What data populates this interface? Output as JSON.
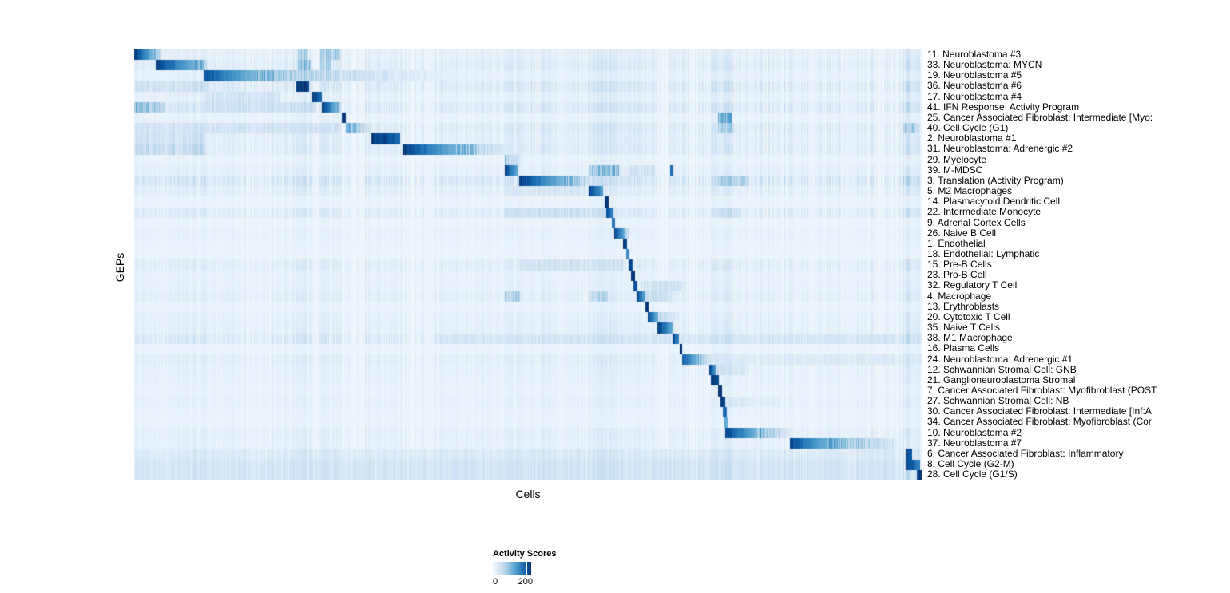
{
  "figure": {
    "background": "#ffffff"
  },
  "chart_data": {
    "type": "heatmap",
    "title": "",
    "xlabel": "Cells",
    "ylabel": "GEPs",
    "x_axis": {
      "tick_labels_shown": false
    },
    "grid": false,
    "legend": {
      "title": "Activity Scores",
      "min_label": "0",
      "tick_label": "200",
      "tick_fraction": 0.85,
      "position": "bottom-left"
    },
    "colormap": {
      "name": "Blues",
      "positions": [
        0,
        0.13,
        0.26,
        0.39,
        0.52,
        0.65,
        0.78,
        0.9,
        1.0
      ],
      "stops": [
        "#f7fbff",
        "#deebf7",
        "#c6dbef",
        "#9ecae1",
        "#6baed6",
        "#4292c6",
        "#2171b5",
        "#08519c",
        "#08306b"
      ]
    },
    "n_rows": 41,
    "rows": [
      {
        "label": "11. Neuroblastoma #3",
        "noise": 0.18,
        "blocks": [
          [
            0.0,
            0.034,
            1.0,
            0.25
          ],
          [
            0.207,
            0.22,
            0.3,
            0.3
          ],
          [
            0.236,
            0.262,
            0.32,
            0.32
          ]
        ]
      },
      {
        "label": "33. Neuroblastoma: MYCN",
        "noise": 0.25,
        "blocks": [
          [
            0.027,
            0.092,
            1.0,
            0.35
          ],
          [
            0.207,
            0.223,
            0.38,
            0.38
          ],
          [
            0.236,
            0.25,
            0.3,
            0.3
          ]
        ]
      },
      {
        "label": "19. Neuroblastoma #5",
        "noise": 0.15,
        "blocks": [
          [
            0.088,
            0.14,
            0.92,
            0.55
          ],
          [
            0.14,
            0.205,
            0.55,
            0.3
          ],
          [
            0.205,
            0.44,
            0.3,
            0.03
          ]
        ]
      },
      {
        "label": "36. Neuroblastoma #6",
        "noise": 0.3,
        "blocks": [
          [
            0.205,
            0.221,
            1.0,
            0.95
          ],
          [
            0.0,
            0.095,
            0.2,
            0.2
          ]
        ]
      },
      {
        "label": "17. Neuroblastoma #4",
        "noise": 0.15,
        "blocks": [
          [
            0.225,
            0.238,
            1.0,
            0.8
          ],
          [
            0.09,
            0.185,
            0.18,
            0.18
          ]
        ]
      },
      {
        "label": "41. IFN Response: Activity Program",
        "noise": 0.3,
        "blocks": [
          [
            0.238,
            0.263,
            1.0,
            0.3
          ],
          [
            0.0,
            0.04,
            0.45,
            0.3
          ],
          [
            0.09,
            0.23,
            0.2,
            0.2
          ]
        ]
      },
      {
        "label": "25. Cancer Associated Fibroblast: Intermediate [Myo:",
        "noise": 0.12,
        "blocks": [
          [
            0.263,
            0.268,
            1.0,
            1.0
          ],
          [
            0.74,
            0.757,
            0.45,
            0.45
          ]
        ]
      },
      {
        "label": "40. Cell Cycle (G1)",
        "noise": 0.28,
        "blocks": [
          [
            0.268,
            0.3,
            0.55,
            0.12
          ],
          [
            0.0,
            0.26,
            0.18,
            0.18
          ],
          [
            0.74,
            0.76,
            0.3,
            0.3
          ],
          [
            0.975,
            0.995,
            0.35,
            0.35
          ]
        ]
      },
      {
        "label": "2. Neuroblastoma #1",
        "noise": 0.22,
        "blocks": [
          [
            0.3,
            0.337,
            1.0,
            0.85
          ],
          [
            0.0,
            0.09,
            0.2,
            0.2
          ]
        ]
      },
      {
        "label": "31. Neuroblastoma: Adrenergic #2",
        "noise": 0.25,
        "blocks": [
          [
            0.34,
            0.4,
            1.0,
            0.55
          ],
          [
            0.4,
            0.47,
            0.55,
            0.12
          ],
          [
            0.0,
            0.09,
            0.25,
            0.25
          ]
        ]
      },
      {
        "label": "29. Myelocyte",
        "noise": 0.1,
        "blocks": [
          [
            0.47,
            0.492,
            0.35,
            0.12
          ]
        ]
      },
      {
        "label": "39. M-MDSC",
        "noise": 0.18,
        "blocks": [
          [
            0.47,
            0.487,
            1.0,
            0.5
          ],
          [
            0.576,
            0.614,
            0.42,
            0.42
          ],
          [
            0.679,
            0.683,
            0.8,
            0.8
          ],
          [
            0.627,
            0.66,
            0.2,
            0.2
          ]
        ]
      },
      {
        "label": "3. Translation (Activity Program)",
        "noise": 0.35,
        "blocks": [
          [
            0.488,
            0.53,
            1.0,
            0.6
          ],
          [
            0.53,
            0.585,
            0.6,
            0.15
          ],
          [
            0.585,
            0.62,
            0.15,
            0.08
          ],
          [
            0.74,
            0.78,
            0.3,
            0.3
          ]
        ]
      },
      {
        "label": "5. M2 Macrophages",
        "noise": 0.2,
        "blocks": [
          [
            0.576,
            0.594,
            1.0,
            0.6
          ],
          [
            0.47,
            0.576,
            0.15,
            0.15
          ]
        ]
      },
      {
        "label": "14. Plasmacytoid Dendritic Cell",
        "noise": 0.08,
        "blocks": [
          [
            0.596,
            0.601,
            1.0,
            1.0
          ]
        ]
      },
      {
        "label": "22. Intermediate Monocyte",
        "noise": 0.25,
        "blocks": [
          [
            0.598,
            0.607,
            0.95,
            0.7
          ],
          [
            0.47,
            0.596,
            0.2,
            0.2
          ],
          [
            0.74,
            0.77,
            0.2,
            0.2
          ]
        ]
      },
      {
        "label": "9. Adrenal Cortex Cells",
        "noise": 0.07,
        "blocks": [
          [
            0.605,
            0.609,
            0.75,
            0.75
          ]
        ]
      },
      {
        "label": "26. Naive B Cell",
        "noise": 0.12,
        "blocks": [
          [
            0.608,
            0.628,
            1.0,
            0.3
          ]
        ]
      },
      {
        "label": "1. Endothelial",
        "noise": 0.08,
        "blocks": [
          [
            0.62,
            0.625,
            1.0,
            1.0
          ]
        ]
      },
      {
        "label": "18. Endothelial: Lymphatic",
        "noise": 0.07,
        "blocks": [
          [
            0.624,
            0.628,
            0.7,
            0.7
          ]
        ]
      },
      {
        "label": "15. Pre-B Cells",
        "noise": 0.22,
        "blocks": [
          [
            0.627,
            0.632,
            1.0,
            0.9
          ],
          [
            0.49,
            0.62,
            0.18,
            0.18
          ]
        ]
      },
      {
        "label": "23. Pro-B Cell",
        "noise": 0.12,
        "blocks": [
          [
            0.63,
            0.635,
            1.0,
            1.0
          ]
        ]
      },
      {
        "label": "32. Regulatory T Cell",
        "noise": 0.14,
        "blocks": [
          [
            0.633,
            0.638,
            0.9,
            0.9
          ],
          [
            0.64,
            0.7,
            0.18,
            0.18
          ]
        ]
      },
      {
        "label": "4. Macrophage",
        "noise": 0.2,
        "blocks": [
          [
            0.637,
            0.648,
            1.0,
            0.55
          ],
          [
            0.648,
            0.682,
            0.25,
            0.15
          ],
          [
            0.47,
            0.49,
            0.3,
            0.3
          ],
          [
            0.576,
            0.6,
            0.3,
            0.3
          ]
        ]
      },
      {
        "label": "13. Erythroblasts",
        "noise": 0.09,
        "blocks": [
          [
            0.648,
            0.652,
            1.0,
            1.0
          ]
        ]
      },
      {
        "label": "20. Cytotoxic T Cell",
        "noise": 0.16,
        "blocks": [
          [
            0.651,
            0.664,
            1.0,
            0.45
          ],
          [
            0.664,
            0.69,
            0.25,
            0.1
          ]
        ]
      },
      {
        "label": "35. Naive T Cells",
        "noise": 0.18,
        "blocks": [
          [
            0.663,
            0.683,
            1.0,
            0.5
          ]
        ]
      },
      {
        "label": "38. M1 Macrophage",
        "noise": 0.3,
        "blocks": [
          [
            0.682,
            0.69,
            0.95,
            0.7
          ],
          [
            0.38,
            0.68,
            0.15,
            0.15
          ],
          [
            0.69,
            1.0,
            0.15,
            0.15
          ]
        ]
      },
      {
        "label": "16. Plasma Cells",
        "noise": 0.08,
        "blocks": [
          [
            0.691,
            0.695,
            1.0,
            1.0
          ]
        ]
      },
      {
        "label": "24. Neuroblastoma: Adrenergic #1",
        "noise": 0.2,
        "blocks": [
          [
            0.695,
            0.716,
            0.9,
            0.45
          ],
          [
            0.716,
            0.732,
            0.45,
            0.15
          ],
          [
            0.73,
            1.0,
            0.13,
            0.13
          ]
        ]
      },
      {
        "label": "12. Schwannian Stromal Cell: GNB",
        "noise": 0.15,
        "blocks": [
          [
            0.729,
            0.737,
            1.0,
            0.6
          ],
          [
            0.737,
            0.78,
            0.2,
            0.12
          ]
        ]
      },
      {
        "label": "21. Ganglioneuroblastoma Stromal",
        "noise": 0.13,
        "blocks": [
          [
            0.731,
            0.741,
            1.0,
            0.9
          ]
        ]
      },
      {
        "label": "7. Cancer Associated Fibroblast: Myofibroblast (POST",
        "noise": 0.1,
        "blocks": [
          [
            0.74,
            0.745,
            1.0,
            1.0
          ]
        ]
      },
      {
        "label": "27. Schwannian Stromal Cell: NB",
        "noise": 0.14,
        "blocks": [
          [
            0.743,
            0.749,
            0.95,
            0.95
          ],
          [
            0.75,
            0.82,
            0.15,
            0.1
          ]
        ]
      },
      {
        "label": "30. Cancer Associated Fibroblast: Intermediate [Inf:A",
        "noise": 0.09,
        "blocks": [
          [
            0.746,
            0.751,
            0.8,
            0.8
          ]
        ]
      },
      {
        "label": "34. Cancer Associated Fibroblast: Myofibroblast (Cor",
        "noise": 0.08,
        "blocks": [
          [
            0.748,
            0.752,
            0.55,
            0.55
          ]
        ]
      },
      {
        "label": "10. Neuroblastoma #2",
        "noise": 0.18,
        "blocks": [
          [
            0.749,
            0.79,
            0.95,
            0.5
          ],
          [
            0.79,
            0.831,
            0.5,
            0.12
          ]
        ]
      },
      {
        "label": "37. Neuroblastoma #7",
        "noise": 0.15,
        "blocks": [
          [
            0.831,
            0.88,
            0.95,
            0.5
          ],
          [
            0.88,
            0.978,
            0.5,
            0.08
          ]
        ]
      },
      {
        "label": "6. Cancer Associated Fibroblast: Inflammatory",
        "noise": 0.25,
        "blocks": [
          [
            0.978,
            0.986,
            1.0,
            0.9
          ],
          [
            0.0,
            0.97,
            0.12,
            0.12
          ]
        ]
      },
      {
        "label": "8. Cell Cycle (G2-M)",
        "noise": 0.3,
        "blocks": [
          [
            0.978,
            0.996,
            1.0,
            0.75
          ],
          [
            0.0,
            0.97,
            0.16,
            0.16
          ]
        ]
      },
      {
        "label": "28. Cell Cycle (G1/S)",
        "noise": 0.3,
        "blocks": [
          [
            0.992,
            1.0,
            1.0,
            1.0
          ],
          [
            0.0,
            0.97,
            0.16,
            0.16
          ]
        ]
      }
    ],
    "hot_columns": [
      [
        0.0,
        0.09,
        0.35
      ],
      [
        0.09,
        0.23,
        0.25
      ],
      [
        0.205,
        0.225,
        0.5
      ],
      [
        0.236,
        0.262,
        0.45
      ],
      [
        0.3,
        0.34,
        0.3
      ],
      [
        0.38,
        0.47,
        0.25
      ],
      [
        0.47,
        0.49,
        0.5
      ],
      [
        0.49,
        0.576,
        0.25
      ],
      [
        0.576,
        0.614,
        0.55
      ],
      [
        0.6,
        0.66,
        0.3
      ],
      [
        0.679,
        0.7,
        0.45
      ],
      [
        0.73,
        0.76,
        0.6
      ],
      [
        0.76,
        0.915,
        0.2
      ],
      [
        0.915,
        0.93,
        0.35
      ],
      [
        0.975,
        0.995,
        0.7
      ]
    ]
  }
}
